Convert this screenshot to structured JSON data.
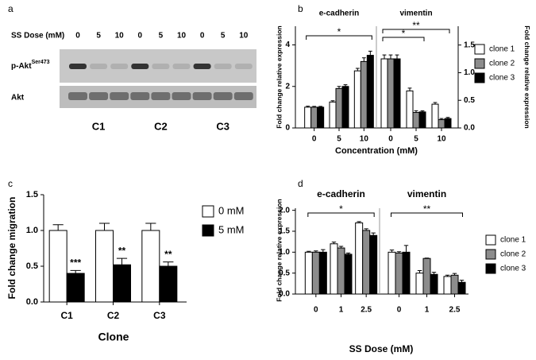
{
  "chart_data": [
    {
      "type": "blot",
      "label": "a",
      "dose_label": "SS Dose (mM)",
      "doses": [
        "0",
        "5",
        "10",
        "0",
        "5",
        "10",
        "0",
        "5",
        "10"
      ],
      "rows": [
        {
          "name": "p-Akt",
          "superscript": "Ser473"
        },
        {
          "name": "Akt"
        }
      ],
      "clones": [
        "C1",
        "C2",
        "C3"
      ]
    },
    {
      "type": "grouped_bar",
      "label": "b",
      "xlabel": "Concentration (mM)",
      "ylabel": "Fold change relative expression",
      "y2label": "Fold change relative expression",
      "ylim": [
        0,
        4.9
      ],
      "yticks": [
        0,
        2,
        4
      ],
      "y2lim": [
        0,
        1.84
      ],
      "y2ticks": [
        {
          "value": 0,
          "label": "0.0"
        },
        {
          "value": 0.5,
          "label": "0.5"
        },
        {
          "value": 1.0,
          "label": "1.0"
        },
        {
          "value": 1.5,
          "label": "1.5"
        }
      ],
      "legend": "right",
      "groups": [
        {
          "name": "e-cadherin",
          "categories": [
            "0",
            "5",
            "10"
          ],
          "series": [
            {
              "name": "clone 1",
              "color": "#ffffff",
              "values": [
                1.0,
                1.25,
                2.75
              ],
              "errors": [
                0.05,
                0.06,
                0.12
              ]
            },
            {
              "name": "clone 2",
              "color": "#8c8c8c",
              "values": [
                1.0,
                1.9,
                3.2
              ],
              "errors": [
                0.04,
                0.1,
                0.18
              ]
            },
            {
              "name": "clone 3",
              "color": "#000000",
              "values": [
                1.0,
                2.0,
                3.5
              ],
              "errors": [
                0.04,
                0.08,
                0.2
              ]
            }
          ]
        },
        {
          "name": "vimentin",
          "axis": "y2",
          "categories": [
            "0",
            "5",
            "10"
          ],
          "series": [
            {
              "name": "clone 1",
              "color": "#ffffff",
              "values": [
                1.25,
                0.67,
                0.43
              ],
              "errors": [
                0.07,
                0.05,
                0.03
              ]
            },
            {
              "name": "clone 2",
              "color": "#8c8c8c",
              "values": [
                1.25,
                0.28,
                0.15
              ],
              "errors": [
                0.07,
                0.03,
                0.02
              ]
            },
            {
              "name": "clone 3",
              "color": "#000000",
              "values": [
                1.25,
                0.29,
                0.17
              ],
              "errors": [
                0.07,
                0.02,
                0.02
              ]
            }
          ]
        }
      ],
      "annotations": [
        "*",
        "**",
        "*"
      ]
    },
    {
      "type": "bar",
      "label": "c",
      "xlabel": "Clone",
      "ylabel": "Fold change migration",
      "ylim": [
        0,
        1.5
      ],
      "yticks": [
        {
          "value": 0,
          "label": "0.0"
        },
        {
          "value": 0.5,
          "label": "0.5"
        },
        {
          "value": 1.0,
          "label": "1.0"
        },
        {
          "value": 1.5,
          "label": "1.5"
        }
      ],
      "legend": "upper right",
      "categories": [
        "C1",
        "C2",
        "C3"
      ],
      "series": [
        {
          "name": "0 mM",
          "color": "#ffffff",
          "values": [
            1.0,
            1.0,
            1.0
          ],
          "errors": [
            0.08,
            0.1,
            0.1
          ]
        },
        {
          "name": "5 mM",
          "color": "#000000",
          "values": [
            0.4,
            0.52,
            0.5
          ],
          "errors": [
            0.04,
            0.09,
            0.06
          ]
        }
      ],
      "annotations": [
        "***",
        "**",
        "**"
      ]
    },
    {
      "type": "grouped_bar",
      "label": "d",
      "xlabel": "SS Dose (mM)",
      "ylabel": "Fold change relative expression",
      "ylim": [
        0,
        2.05
      ],
      "yticks": [
        {
          "value": 0,
          "label": "0.0"
        },
        {
          "value": 0.5,
          "label": "0.5"
        },
        {
          "value": 1.0,
          "label": "1.0"
        },
        {
          "value": 1.5,
          "label": "1.5"
        },
        {
          "value": 2.0,
          "label": "2.0"
        }
      ],
      "legend": "right",
      "groups": [
        {
          "name": "e-cadherin",
          "categories": [
            "0",
            "1",
            "2.5"
          ],
          "series": [
            {
              "name": "clone 1",
              "color": "#ffffff",
              "values": [
                1.0,
                1.2,
                1.7
              ],
              "errors": [
                0.02,
                0.04,
                0.03
              ]
            },
            {
              "name": "clone 2",
              "color": "#8c8c8c",
              "values": [
                1.0,
                1.1,
                1.52
              ],
              "errors": [
                0.03,
                0.04,
                0.04
              ]
            },
            {
              "name": "clone 3",
              "color": "#000000",
              "values": [
                1.0,
                0.95,
                1.4
              ],
              "errors": [
                0.06,
                0.03,
                0.06
              ]
            }
          ]
        },
        {
          "name": "vimentin",
          "categories": [
            "0",
            "1",
            "2.5"
          ],
          "series": [
            {
              "name": "clone 1",
              "color": "#ffffff",
              "values": [
                1.0,
                0.5,
                0.42
              ],
              "errors": [
                0.05,
                0.06,
                0.03
              ]
            },
            {
              "name": "clone 2",
              "color": "#8c8c8c",
              "values": [
                0.98,
                0.85,
                0.45
              ],
              "errors": [
                0.03,
                0.01,
                0.04
              ]
            },
            {
              "name": "clone 3",
              "color": "#000000",
              "values": [
                1.0,
                0.47,
                0.28
              ],
              "errors": [
                0.16,
                0.05,
                0.05
              ]
            }
          ]
        }
      ],
      "annotations": [
        "*",
        "**"
      ]
    }
  ]
}
